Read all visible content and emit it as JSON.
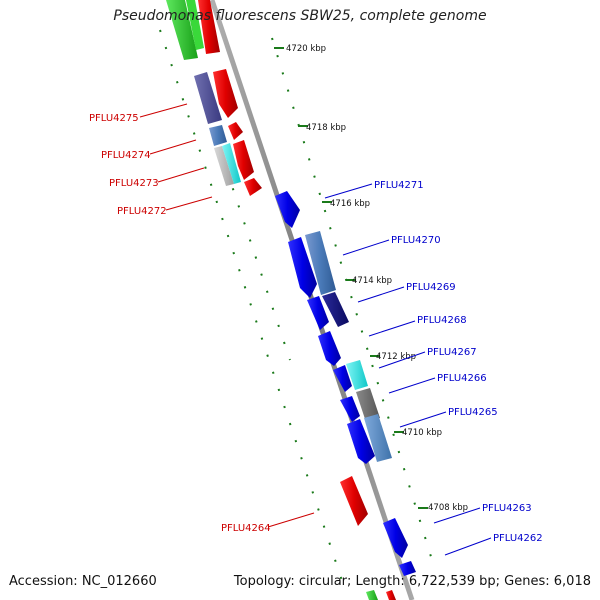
{
  "title": "Pseudomonas fluorescens SBW25, complete genome",
  "accession": "Accession: NC_012660",
  "topology": "Topology: circular; Length: 6,722,539 bp; Genes: 6,018",
  "colors": {
    "reverse_label": "#cc0000",
    "forward_label": "#0000cc",
    "backbone": "#808080",
    "tick": "#1a7a1a"
  },
  "kbp_labels": [
    "4720 kbp",
    "4718 kbp",
    "4716 kbp",
    "4714 kbp",
    "4712 kbp",
    "4710 kbp",
    "4708 kbp"
  ],
  "reverse_genes": [
    "PFLU4275",
    "PFLU4274",
    "PFLU4273",
    "PFLU4272",
    "PFLU4264"
  ],
  "forward_genes": [
    "PFLU4271",
    "PFLU4270",
    "PFLU4269",
    "PFLU4268",
    "PFLU4267",
    "PFLU4266",
    "PFLU4265",
    "PFLU4263",
    "PFLU4262"
  ]
}
